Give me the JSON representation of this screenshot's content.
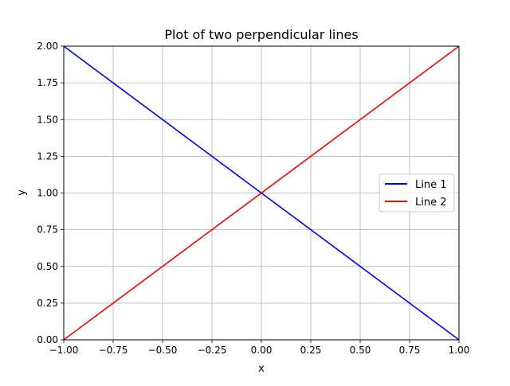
{
  "chart_data": {
    "type": "line",
    "title": "Plot of two perpendicular lines",
    "xlabel": "x",
    "ylabel": "y",
    "xlim": [
      -1.0,
      1.0
    ],
    "ylim": [
      0.0,
      2.0
    ],
    "grid": true,
    "legend_position": "center-right",
    "x_ticks": [
      -1.0,
      -0.75,
      -0.5,
      -0.25,
      0.0,
      0.25,
      0.5,
      0.75,
      1.0
    ],
    "x_tick_labels": [
      "−1.00",
      "−0.75",
      "−0.50",
      "−0.25",
      "0.00",
      "0.25",
      "0.50",
      "0.75",
      "1.00"
    ],
    "y_ticks": [
      0.0,
      0.25,
      0.5,
      0.75,
      1.0,
      1.25,
      1.5,
      1.75,
      2.0
    ],
    "y_tick_labels": [
      "0.00",
      "0.25",
      "0.50",
      "0.75",
      "1.00",
      "1.25",
      "1.50",
      "1.75",
      "2.00"
    ],
    "series": [
      {
        "name": "Line 1",
        "color": "#0000ff",
        "x": [
          -1.0,
          1.0
        ],
        "y": [
          2.0,
          0.0
        ]
      },
      {
        "name": "Line 2",
        "color": "#ff0000",
        "x": [
          -1.0,
          1.0
        ],
        "y": [
          0.0,
          2.0
        ]
      }
    ]
  }
}
